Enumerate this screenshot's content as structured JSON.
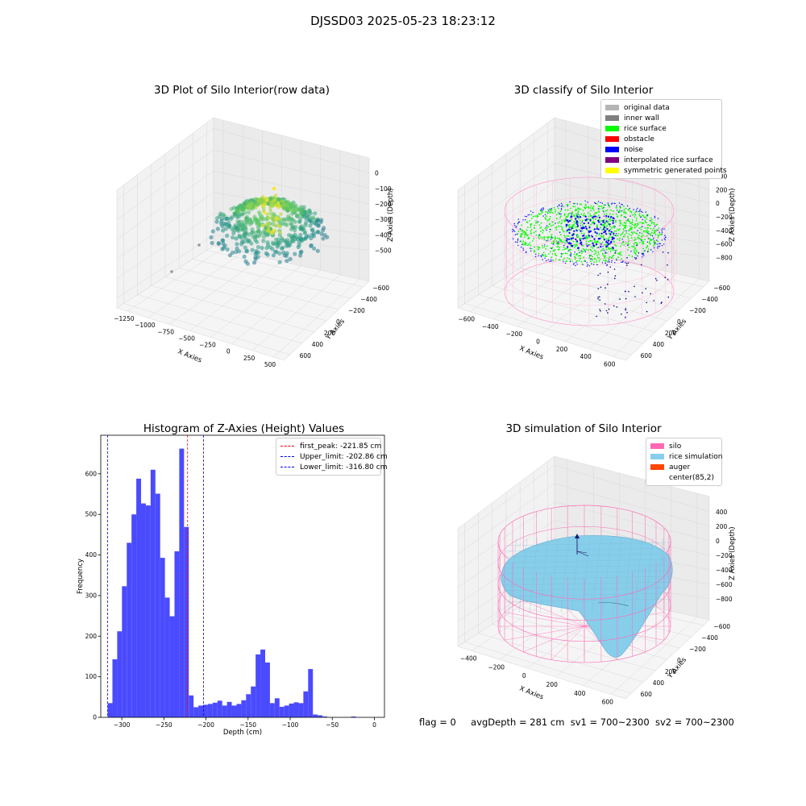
{
  "figure": {
    "suptitle": "DJSSD03 2025-05-23 18:23:12",
    "status": {
      "flag": "flag = 0",
      "avg_depth": "avgDepth = 281 cm",
      "sv1": "sv1 = 700~2300",
      "sv2": "sv2 = 700~2300"
    }
  },
  "colors": {
    "histogram_bar": "#4a4aff",
    "first_peak_line": "#ff0000",
    "limit_lines": "#0000ff",
    "silo_wire": "#ff69b4",
    "rice_simulation": "#87ceeb",
    "auger": "#ff4500",
    "rice_surface": "#00ff00",
    "noise": "#0000ff",
    "pane_gray": "#f2f2f2"
  },
  "chart_data": [
    {
      "type": "scatter",
      "title": "3D Plot of Silo Interior(row data)",
      "xlabel": "X Axies",
      "ylabel": "Y Axies",
      "zlabel": "Z Axies (Depth)",
      "x_ticks": [
        "−1250",
        "−1000",
        "−750",
        "−500",
        "−250",
        "0",
        "250",
        "500"
      ],
      "y_ticks": [
        "−600",
        "−400",
        "−200",
        "0",
        "200",
        "400",
        "600"
      ],
      "z_ticks": [
        "0",
        "−100",
        "−200",
        "−300",
        "−400",
        "−500"
      ],
      "colormap": "viridis"
    },
    {
      "type": "scatter",
      "title": "3D classify of Silo Interior",
      "xlabel": "X Axies",
      "ylabel": "Y Axies",
      "zlabel": "Z Axies (Depth)",
      "x_ticks": [
        "−600",
        "−400",
        "−200",
        "0",
        "200",
        "400",
        "600"
      ],
      "y_ticks": [
        "−600",
        "−400",
        "−200",
        "0",
        "200",
        "400",
        "600"
      ],
      "z_ticks": [
        "−800",
        "−600",
        "−400",
        "−200",
        "0",
        "200",
        "400"
      ],
      "legend": [
        {
          "label": "original data",
          "color": "#b4b4b4"
        },
        {
          "label": "inner wall",
          "color": "#808080"
        },
        {
          "label": "rice surface",
          "color": "#00ff00"
        },
        {
          "label": "obstacle",
          "color": "#ff0000"
        },
        {
          "label": "noise",
          "color": "#0000ff"
        },
        {
          "label": "interpolated rice surface",
          "color": "#800080"
        },
        {
          "label": "symmetric generated points",
          "color": "#ffff00"
        }
      ]
    },
    {
      "type": "bar",
      "title": "Histogram of Z-Axies (Height) Values",
      "xlabel": "Depth (cm)",
      "ylabel": "Frequency",
      "xlim": [
        -325,
        12
      ],
      "ylim": [
        0,
        695
      ],
      "x_ticks": [
        -300,
        -250,
        -200,
        -150,
        -100,
        -50,
        0
      ],
      "y_ticks": [
        0,
        100,
        200,
        300,
        400,
        500,
        600
      ],
      "bin_start": -316.8,
      "bin_width": 5.67,
      "values": [
        35,
        143,
        212,
        323,
        430,
        500,
        588,
        527,
        522,
        610,
        551,
        393,
        295,
        249,
        409,
        662,
        469,
        54,
        25,
        29,
        31,
        33,
        36,
        41,
        29,
        38,
        29,
        33,
        42,
        57,
        76,
        155,
        167,
        135,
        35,
        47,
        26,
        29,
        34,
        37,
        35,
        64,
        119,
        7,
        5,
        2,
        0,
        0,
        0,
        0,
        0,
        2,
        0
      ],
      "lines": [
        {
          "label": "first_peak: -221.85 cm",
          "value": -221.85,
          "color": "#ff0000"
        },
        {
          "label": "Upper_limit: -202.86 cm",
          "value": -202.86,
          "color": "#0000ff"
        },
        {
          "label": "Lower_limit: -316.80 cm",
          "value": -316.8,
          "color": "#0000ff"
        }
      ]
    },
    {
      "type": "area",
      "title": "3D simulation of Silo Interior",
      "xlabel": "X Axies",
      "ylabel": "Y Axies",
      "zlabel": "Z Axies (Depth)",
      "x_ticks": [
        "−400",
        "−200",
        "0",
        "200",
        "400",
        "600"
      ],
      "y_ticks": [
        "−600",
        "−400",
        "−200",
        "0",
        "200",
        "400",
        "600"
      ],
      "z_ticks": [
        "−800",
        "−600",
        "−400",
        "−200",
        "0",
        "200",
        "400"
      ],
      "legend": [
        {
          "label": "silo",
          "color": "#ff69b4"
        },
        {
          "label": "rice simulation",
          "color": "#87ceeb"
        },
        {
          "label": "auger",
          "color": "#ff4500"
        },
        {
          "label": "center(85,2)",
          "color": "#ffffff"
        }
      ]
    }
  ]
}
